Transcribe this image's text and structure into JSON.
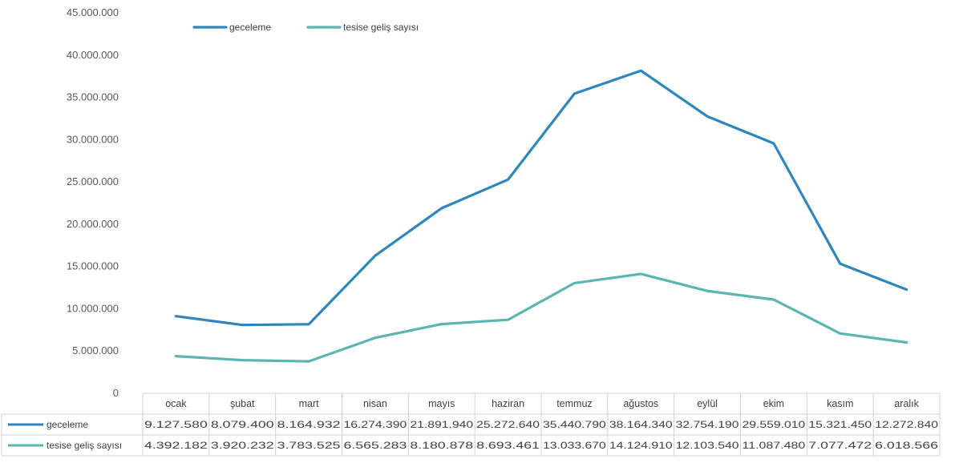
{
  "chart_data": {
    "type": "line",
    "categories": [
      "ocak",
      "şubat",
      "mart",
      "nisan",
      "mayıs",
      "haziran",
      "temmuz",
      "ağustos",
      "eylül",
      "ekim",
      "kasım",
      "aralık"
    ],
    "series": [
      {
        "name": "geceleme",
        "color": "#2e86c1",
        "values": [
          9127580,
          8079400,
          8164932,
          16274390,
          21891940,
          25272640,
          35440790,
          38164340,
          32754190,
          29559010,
          15321450,
          12272840
        ],
        "labels": [
          "9.127.580",
          "8.079.400",
          "8.164.932",
          "16.274.390",
          "21.891.940",
          "25.272.640",
          "35.440.790",
          "38.164.340",
          "32.754.190",
          "29.559.010",
          "15.321.450",
          "12.272.840"
        ]
      },
      {
        "name": "tesise geliş sayısı",
        "color": "#5bb5b0",
        "values": [
          4392182,
          3920232,
          3783525,
          6565283,
          8180878,
          8693461,
          13033670,
          14124910,
          12103540,
          11087480,
          7077472,
          6018566
        ],
        "labels": [
          "4.392.182",
          "3.920.232",
          "3.783.525",
          "6.565.283",
          "8.180.878",
          "8.693.461",
          "13.033.670",
          "14.124.910",
          "12.103.540",
          "11.087.480",
          "7.077.472",
          "6.018.566"
        ]
      }
    ],
    "ylim": [
      0,
      45000000
    ],
    "y_ticks": [
      "0",
      "5.000.000",
      "10.000.000",
      "15.000.000",
      "20.000.000",
      "25.000.000",
      "30.000.000",
      "35.000.000",
      "40.000.000",
      "45.000.000"
    ],
    "grid": false,
    "legend": "top-left",
    "data_table": true
  }
}
